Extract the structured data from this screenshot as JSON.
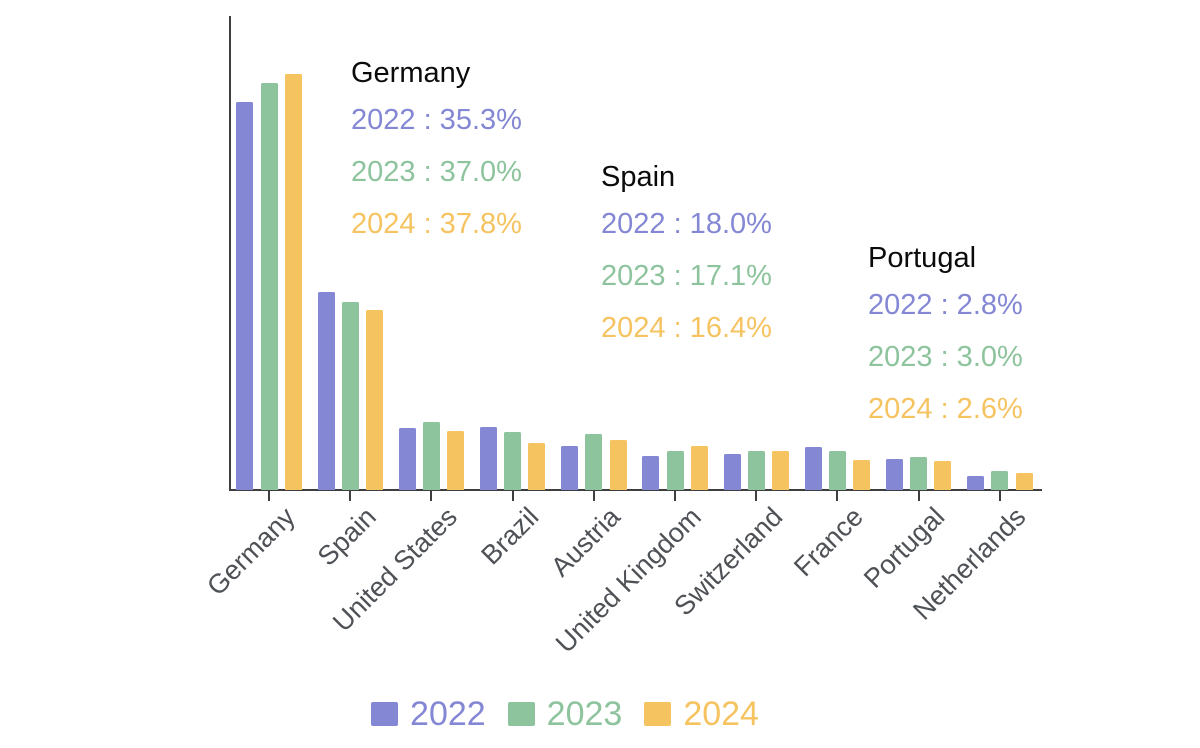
{
  "chart_data": {
    "type": "bar",
    "title": "",
    "xlabel": "",
    "ylabel": "",
    "unit": "%",
    "grid": false,
    "legend_position": "bottom",
    "ylim": [
      0,
      43
    ],
    "categories": [
      "Germany",
      "Spain",
      "United States",
      "Brazil",
      "Austria",
      "United Kingdom",
      "Switzerland",
      "France",
      "Portugal",
      "Netherlands"
    ],
    "series": [
      {
        "name": "2022",
        "color": "#8487d4",
        "values": [
          35.3,
          18.0,
          5.6,
          5.7,
          4.0,
          3.1,
          3.3,
          3.9,
          2.8,
          1.3
        ]
      },
      {
        "name": "2023",
        "color": "#8ec49d",
        "values": [
          37.0,
          17.1,
          6.2,
          5.3,
          5.1,
          3.5,
          3.5,
          3.5,
          3.0,
          1.7
        ]
      },
      {
        "name": "2024",
        "color": "#f6c361",
        "values": [
          37.8,
          16.4,
          5.4,
          4.3,
          4.5,
          4.0,
          3.5,
          2.7,
          2.6,
          1.5
        ]
      }
    ]
  },
  "annotations": [
    {
      "title": "Germany",
      "lines": [
        "2022 : 35.3%",
        "2023 : 37.0%",
        "2024 : 37.8%"
      ]
    },
    {
      "title": "Spain",
      "lines": [
        "2022 : 18.0%",
        "2023 : 17.1%",
        "2024 : 16.4%"
      ]
    },
    {
      "title": "Portugal",
      "lines": [
        "2022 : 2.8%",
        "2023 : 3.0%",
        "2024 : 2.6%"
      ]
    }
  ],
  "legend": {
    "items": [
      "2022",
      "2023",
      "2024"
    ]
  },
  "colors": {
    "axis": "#3e3e40",
    "tick_label": "#4e5156",
    "annotation_title": "#0b0b0b",
    "background": "#ffffff"
  }
}
